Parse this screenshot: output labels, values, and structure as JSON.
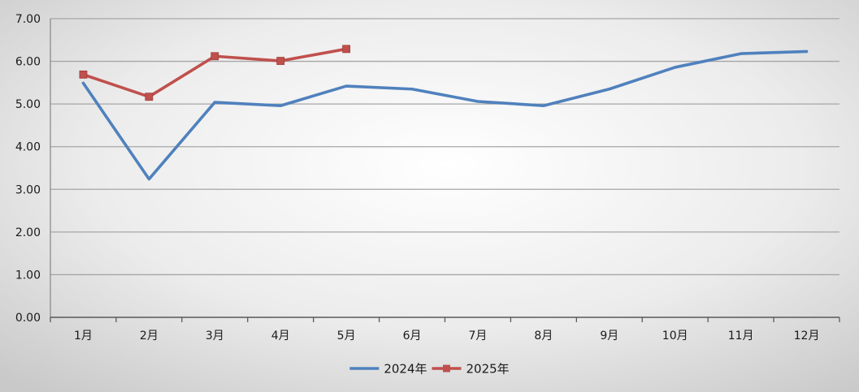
{
  "chart_data": {
    "type": "line",
    "categories": [
      "1月",
      "2月",
      "3月",
      "4月",
      "5月",
      "6月",
      "7月",
      "8月",
      "9月",
      "10月",
      "11月",
      "12月"
    ],
    "series": [
      {
        "name": "2024年",
        "color": "#4f81bd",
        "marker": "none",
        "values": [
          5.49,
          3.24,
          5.04,
          4.96,
          5.42,
          5.35,
          5.06,
          4.96,
          5.35,
          5.86,
          6.18,
          6.23
        ]
      },
      {
        "name": "2025年",
        "color": "#c0504d",
        "marker": "square",
        "values": [
          5.69,
          5.17,
          6.12,
          6.01,
          6.29,
          null,
          null,
          null,
          null,
          null,
          null,
          null
        ]
      }
    ],
    "y_ticks": [
      "0.00",
      "1.00",
      "2.00",
      "3.00",
      "4.00",
      "5.00",
      "6.00",
      "7.00"
    ],
    "ylim": [
      0,
      7
    ],
    "grid": "horizontal",
    "legend_position": "bottom"
  }
}
